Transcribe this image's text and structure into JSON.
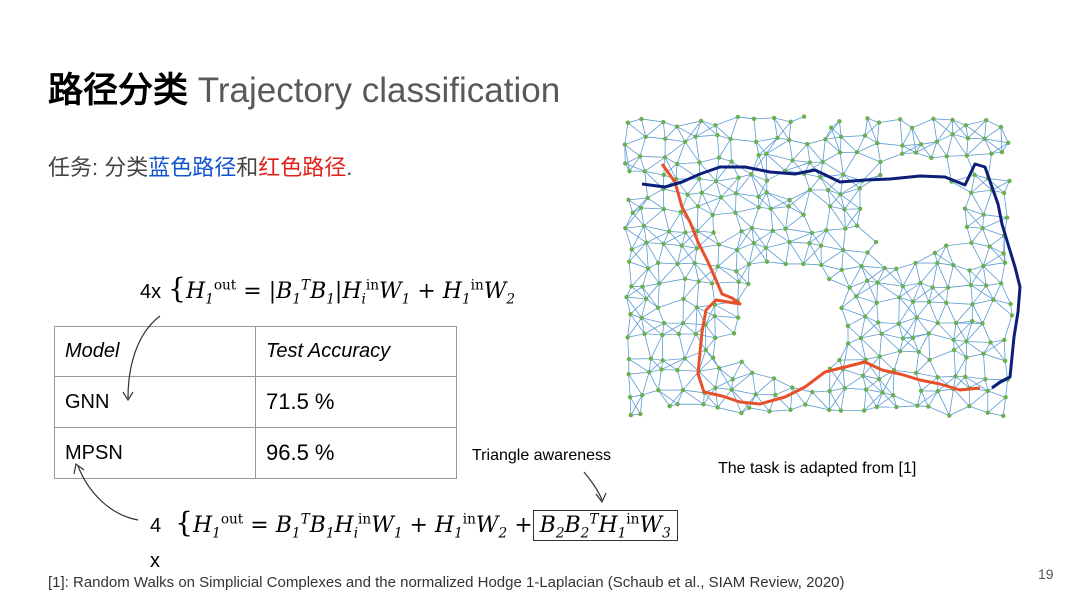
{
  "slide": {
    "title_zh": "路径分类",
    "title_en": "Trajectory classification",
    "page_number": "19"
  },
  "task": {
    "prefix": "任务: 分类",
    "blue_path": "蓝色路径",
    "and": "和",
    "red_path": "红色路径",
    "suffix": "."
  },
  "equations": {
    "gnn_multiplier": "4x",
    "mpsn_multiplier": "4",
    "mpsn_multiplier_x": "x"
  },
  "table": {
    "headers": [
      "Model",
      "Test Accuracy"
    ],
    "rows": [
      {
        "model": "GNN",
        "accuracy": "71.5 %"
      },
      {
        "model": "MPSN",
        "accuracy": "96.5 %"
      }
    ]
  },
  "annotations": {
    "triangle_awareness": "Triangle awareness",
    "adapted": "The task is adapted from [1]"
  },
  "reference": "[1]: Random Walks on Simplicial Complexes and the normalized Hodge 1-Laplacian (Schaub et al., SIAM Review, 2020)",
  "colors": {
    "mesh_edge": "#5b9bd5",
    "mesh_node": "#6ab04c",
    "blue_path": "#0b1f7a",
    "red_path": "#e8502a"
  }
}
